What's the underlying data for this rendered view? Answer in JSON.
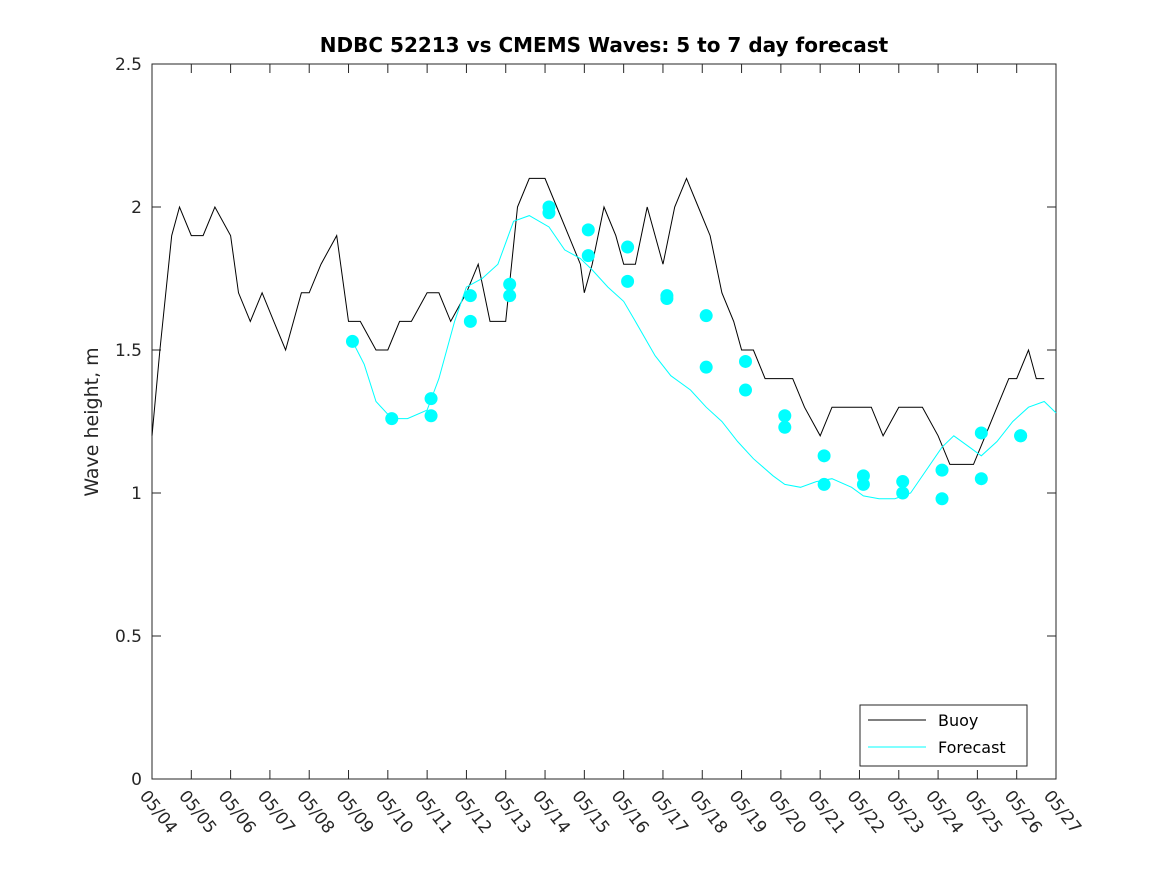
{
  "chart_data": {
    "type": "line",
    "title": "NDBC 52213 vs CMEMS Waves: 5 to 7 day forecast",
    "xlabel": "",
    "ylabel": "Wave height, m",
    "xlim": [
      0,
      23
    ],
    "ylim": [
      0,
      2.5
    ],
    "grid": false,
    "legend_position": "bottom-right",
    "x_tick_labels": [
      "05/04",
      "05/05",
      "05/06",
      "05/07",
      "05/08",
      "05/09",
      "05/10",
      "05/11",
      "05/12",
      "05/13",
      "05/14",
      "05/15",
      "05/16",
      "05/17",
      "05/18",
      "05/19",
      "05/20",
      "05/21",
      "05/22",
      "05/23",
      "05/24",
      "05/25",
      "05/26",
      "05/27"
    ],
    "y_ticks": [
      0,
      0.5,
      1,
      1.5,
      2,
      2.5
    ],
    "y_tick_labels": [
      "0",
      "0.5",
      "1",
      "1.5",
      "2",
      "2.5"
    ],
    "x_unit": "days from 05/04",
    "series": [
      {
        "name": "Buoy",
        "color": "#000000",
        "x": [
          0,
          0.2,
          0.5,
          0.7,
          1.0,
          1.3,
          1.6,
          2.0,
          2.2,
          2.5,
          2.8,
          3.1,
          3.4,
          3.8,
          4.0,
          4.3,
          4.7,
          5.0,
          5.3,
          5.7,
          6.0,
          6.3,
          6.6,
          7.0,
          7.3,
          7.6,
          8.0,
          8.3,
          8.6,
          9.0,
          9.3,
          9.6,
          10.0,
          10.3,
          10.6,
          10.9,
          11.0,
          11.2,
          11.5,
          11.8,
          12.0,
          12.3,
          12.6,
          13.0,
          13.3,
          13.6,
          13.9,
          14.2,
          14.5,
          14.8,
          15.0,
          15.3,
          15.6,
          16.0,
          16.3,
          16.6,
          17.0,
          17.3,
          17.6,
          18.0,
          18.3,
          18.6,
          19.0,
          19.3,
          19.6,
          20.0,
          20.3,
          20.6,
          20.9,
          21.2,
          21.5,
          21.8,
          22.0,
          22.3,
          22.5,
          22.7
        ],
        "y": [
          1.2,
          1.5,
          1.9,
          2.0,
          1.9,
          1.9,
          2.0,
          1.9,
          1.7,
          1.6,
          1.7,
          1.6,
          1.5,
          1.7,
          1.7,
          1.8,
          1.9,
          1.6,
          1.6,
          1.5,
          1.5,
          1.6,
          1.6,
          1.7,
          1.7,
          1.6,
          1.7,
          1.8,
          1.6,
          1.6,
          2.0,
          2.1,
          2.1,
          2.0,
          1.9,
          1.8,
          1.7,
          1.8,
          2.0,
          1.9,
          1.8,
          1.8,
          2.0,
          1.8,
          2.0,
          2.1,
          2.0,
          1.9,
          1.7,
          1.6,
          1.5,
          1.5,
          1.4,
          1.4,
          1.4,
          1.3,
          1.2,
          1.3,
          1.3,
          1.3,
          1.3,
          1.2,
          1.3,
          1.3,
          1.3,
          1.2,
          1.1,
          1.1,
          1.1,
          1.2,
          1.3,
          1.4,
          1.4,
          1.5,
          1.4,
          1.4
        ]
      },
      {
        "name": "Forecast",
        "color": "#00ffff",
        "x": [
          5.1,
          5.4,
          5.7,
          6.1,
          6.5,
          7.0,
          7.3,
          7.7,
          8.0,
          8.4,
          8.8,
          9.2,
          9.6,
          10.1,
          10.5,
          10.9,
          11.2,
          11.6,
          12.0,
          12.3,
          12.8,
          13.2,
          13.7,
          14.1,
          14.5,
          14.9,
          15.3,
          15.8,
          16.1,
          16.5,
          16.9,
          17.3,
          17.8,
          18.1,
          18.5,
          18.9,
          19.3,
          19.7,
          20.1,
          20.4,
          20.8,
          21.1,
          21.5,
          21.9,
          22.3,
          22.7,
          23.0
        ],
        "y": [
          1.53,
          1.45,
          1.32,
          1.26,
          1.26,
          1.29,
          1.4,
          1.6,
          1.72,
          1.75,
          1.8,
          1.95,
          1.97,
          1.93,
          1.85,
          1.82,
          1.78,
          1.72,
          1.67,
          1.6,
          1.48,
          1.41,
          1.36,
          1.3,
          1.25,
          1.18,
          1.12,
          1.06,
          1.03,
          1.02,
          1.04,
          1.05,
          1.02,
          0.99,
          0.98,
          0.98,
          1.0,
          1.08,
          1.16,
          1.2,
          1.16,
          1.13,
          1.18,
          1.25,
          1.3,
          1.32,
          1.28
        ]
      }
    ],
    "markers": {
      "color": "#00ffff",
      "x": [
        5.1,
        6.1,
        7.1,
        7.1,
        8.1,
        8.1,
        9.1,
        9.1,
        10.1,
        10.1,
        11.1,
        11.1,
        12.1,
        12.1,
        13.1,
        13.1,
        14.1,
        14.1,
        15.1,
        15.1,
        16.1,
        16.1,
        17.1,
        17.1,
        18.1,
        18.1,
        19.1,
        19.1,
        20.1,
        20.1,
        21.1,
        21.1,
        22.1,
        22.1
      ],
      "y": [
        1.53,
        1.26,
        1.27,
        1.33,
        1.6,
        1.69,
        1.73,
        1.69,
        2.0,
        1.98,
        1.83,
        1.92,
        1.86,
        1.74,
        1.69,
        1.68,
        1.62,
        1.44,
        1.46,
        1.36,
        1.27,
        1.23,
        1.13,
        1.03,
        1.03,
        1.06,
        1.04,
        1.0,
        0.98,
        1.08,
        1.05,
        1.21,
        1.2,
        1.2
      ]
    }
  }
}
